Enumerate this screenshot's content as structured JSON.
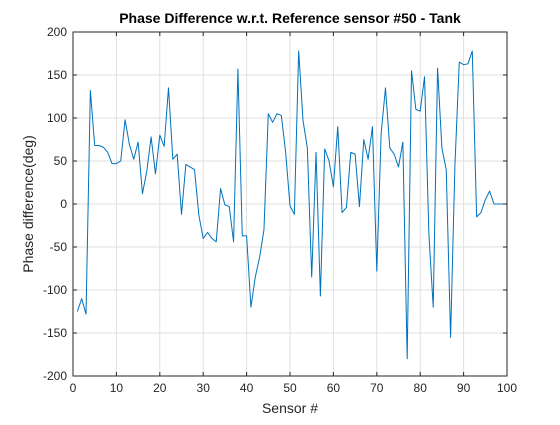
{
  "chart_data": {
    "type": "line",
    "title": "Phase Difference w.r.t. Reference sensor #50 - Tank",
    "xlabel": "Sensor #",
    "ylabel": "Phase difference(deg)",
    "xlim": [
      0,
      100
    ],
    "ylim": [
      -200,
      200
    ],
    "xticks": [
      0,
      10,
      20,
      30,
      40,
      50,
      60,
      70,
      80,
      90,
      100
    ],
    "yticks": [
      -200,
      -150,
      -100,
      -50,
      0,
      50,
      100,
      150,
      200
    ],
    "grid": true,
    "legend": "none",
    "colors": {
      "line": "#0072BD",
      "grid": "#dfdfdf",
      "axes": "#262626"
    },
    "series": [
      {
        "x": [
          1,
          2,
          3,
          4,
          5,
          6,
          7,
          8,
          9,
          10,
          11,
          12,
          13,
          14,
          15,
          16,
          17,
          18,
          19,
          20,
          21,
          22,
          23,
          24,
          25,
          26,
          27,
          28,
          29,
          30,
          31,
          32,
          33,
          34,
          35,
          36,
          37,
          38,
          39,
          40,
          41,
          42,
          43,
          44,
          45,
          46,
          47,
          48,
          49,
          50,
          51,
          52,
          53,
          54,
          55,
          56,
          57,
          58,
          59,
          60,
          61,
          62,
          63,
          64,
          65,
          66,
          67,
          68,
          69,
          70,
          71,
          72,
          73,
          74,
          75,
          76,
          77,
          78,
          79,
          80,
          81,
          82,
          83,
          84,
          85,
          86,
          87,
          88,
          89,
          90,
          91,
          92,
          93,
          94,
          95,
          96,
          97,
          98,
          99,
          100
        ],
        "values": [
          -125,
          -110,
          -128,
          132,
          68,
          68,
          66,
          60,
          47,
          47,
          50,
          98,
          69,
          52,
          72,
          12,
          38,
          78,
          35,
          80,
          67,
          135,
          52,
          58,
          -12,
          46,
          43,
          40,
          -13,
          -40,
          -33,
          -40,
          -44,
          18,
          -1,
          -3,
          -44,
          157,
          -37,
          -37,
          -120,
          -85,
          -62,
          -30,
          105,
          95,
          105,
          103,
          60,
          -2,
          -12,
          178,
          97,
          65,
          -85,
          60,
          -107,
          64,
          50,
          20,
          90,
          -10,
          -4,
          60,
          58,
          -3,
          75,
          52,
          90,
          -78,
          82,
          135,
          65,
          58,
          43,
          72,
          -180,
          155,
          110,
          108,
          148,
          -35,
          -120,
          158,
          65,
          40,
          -155,
          45,
          165,
          162,
          163,
          178,
          -15,
          -10,
          5,
          15,
          0,
          0,
          0,
          0
        ]
      }
    ]
  }
}
